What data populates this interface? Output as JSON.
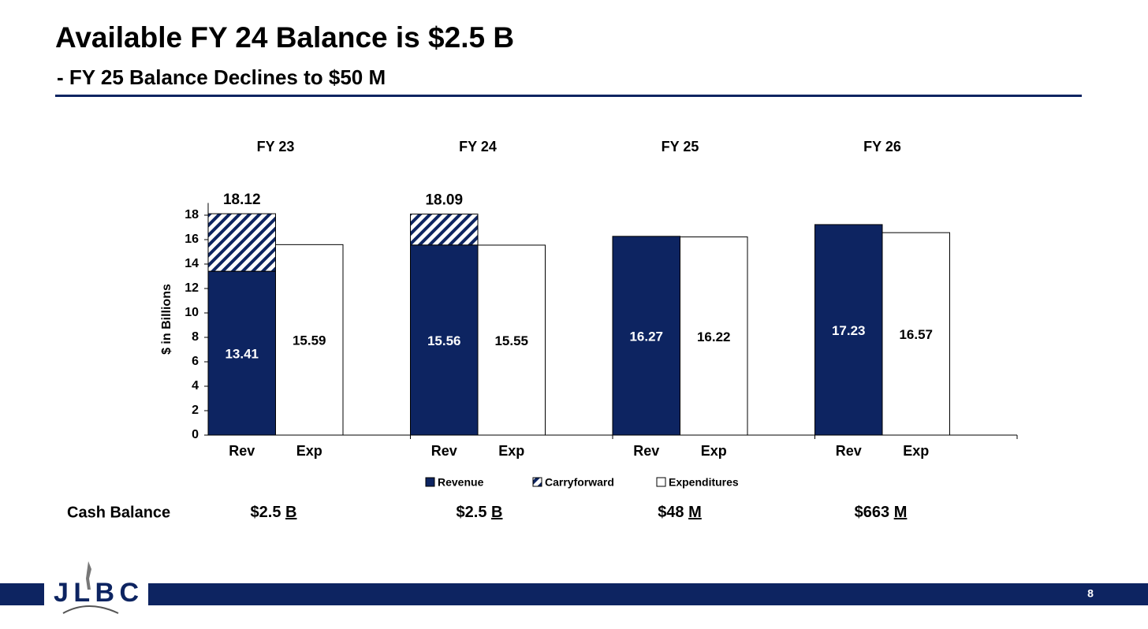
{
  "header": {
    "title": "Available FY 24 Balance is $2.5 B",
    "subtitle": "- FY 25 Balance Declines to $50 M"
  },
  "chart_data": {
    "type": "grouped-stacked-bar",
    "y_label": "$ in Billions",
    "groups": [
      "FY 23",
      "FY 24",
      "FY 25",
      "FY 26"
    ],
    "categories": [
      "Rev",
      "Exp",
      "Rev",
      "Exp",
      "Rev",
      "Exp",
      "Rev",
      "Exp"
    ],
    "series": [
      {
        "name": "Revenue",
        "color": "#0d2461",
        "stack": "rev",
        "values": [
          13.41,
          null,
          15.56,
          null,
          16.27,
          null,
          17.23,
          null
        ],
        "labels": true
      },
      {
        "name": "Carryforward",
        "color": "#0d2461",
        "hatch": true,
        "stack": "rev",
        "values": [
          4.71,
          null,
          2.53,
          null,
          null,
          null,
          null,
          null
        ],
        "labels": false
      },
      {
        "name": "Expenditures",
        "color": "#ffffff",
        "stack": "exp",
        "values": [
          null,
          15.59,
          null,
          15.55,
          null,
          16.22,
          null,
          16.57
        ],
        "labels": true
      }
    ],
    "totals": [
      18.12,
      null,
      18.09,
      null,
      null,
      null,
      null,
      null
    ],
    "ylim": [
      0,
      19
    ],
    "yticks": [
      0,
      2,
      4,
      6,
      8,
      10,
      12,
      14,
      16,
      18
    ]
  },
  "cash_balance": {
    "label": "Cash Balance",
    "values": [
      {
        "amount": "$2.5",
        "unit": "B"
      },
      {
        "amount": "$2.5",
        "unit": "B"
      },
      {
        "amount": "$48",
        "unit": "M"
      },
      {
        "amount": "$663",
        "unit": "M"
      }
    ]
  },
  "footer": {
    "logo": "JLBC",
    "page": "8"
  }
}
